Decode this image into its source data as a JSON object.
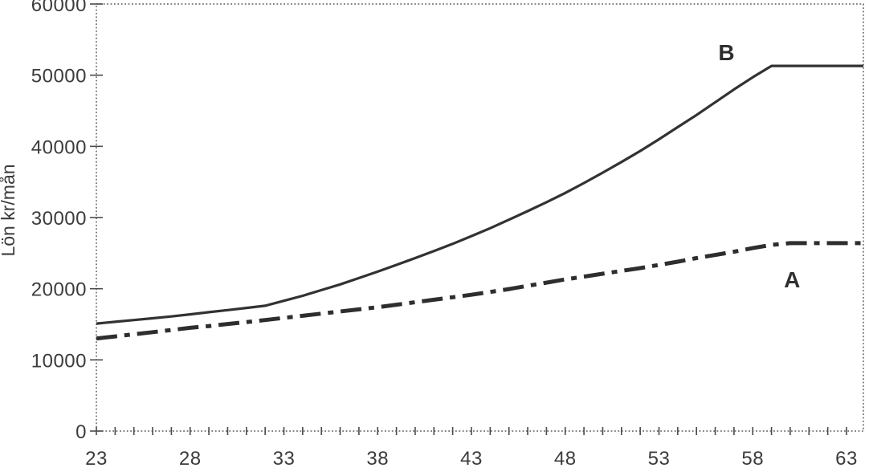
{
  "chart_data": {
    "type": "line",
    "title": "",
    "xlabel": "",
    "ylabel": "Lön kr/mån",
    "xlim": [
      23,
      63.9
    ],
    "ylim": [
      0,
      60000
    ],
    "grid": false,
    "legend_position": "inline-labels-on-plot",
    "axis_color": "#5a5a5a",
    "tick_color": "#4a4a4a",
    "text_color": "#3c3c3c",
    "x_tick_step": 1,
    "x_tick_labels": [
      23,
      28,
      33,
      38,
      43,
      48,
      53,
      58,
      63
    ],
    "y_tick_labels": [
      0,
      10000,
      20000,
      30000,
      40000,
      50000,
      60000
    ],
    "series": [
      {
        "name": "B",
        "style": "solid",
        "color": "#323232",
        "width": 3.2,
        "label_pos": [
          56.6,
          52100
        ],
        "points": [
          [
            23,
            15100
          ],
          [
            24,
            15350
          ],
          [
            25,
            15600
          ],
          [
            26,
            15850
          ],
          [
            27,
            16100
          ],
          [
            28,
            16400
          ],
          [
            29,
            16700
          ],
          [
            30,
            17000
          ],
          [
            31,
            17300
          ],
          [
            32,
            17600
          ],
          [
            33,
            18300
          ],
          [
            34,
            19000
          ],
          [
            35,
            19800
          ],
          [
            36,
            20600
          ],
          [
            37,
            21500
          ],
          [
            38,
            22400
          ],
          [
            39,
            23350
          ],
          [
            40,
            24300
          ],
          [
            41,
            25300
          ],
          [
            42,
            26300
          ],
          [
            43,
            27400
          ],
          [
            44,
            28500
          ],
          [
            45,
            29700
          ],
          [
            46,
            30900
          ],
          [
            47,
            32150
          ],
          [
            48,
            33450
          ],
          [
            49,
            34850
          ],
          [
            50,
            36300
          ],
          [
            51,
            37800
          ],
          [
            52,
            39350
          ],
          [
            53,
            41000
          ],
          [
            54,
            42700
          ],
          [
            55,
            44400
          ],
          [
            56,
            46200
          ],
          [
            57,
            48000
          ],
          [
            58,
            49700
          ],
          [
            59,
            51300
          ],
          [
            60,
            51300
          ],
          [
            61,
            51300
          ],
          [
            62,
            51300
          ],
          [
            63,
            51300
          ],
          [
            63.9,
            51300
          ]
        ]
      },
      {
        "name": "A",
        "style": "dash-dot",
        "color": "#2e2e2e",
        "width": 5,
        "label_pos": [
          60.1,
          20200
        ],
        "points": [
          [
            23,
            13000
          ],
          [
            24,
            13300
          ],
          [
            25,
            13600
          ],
          [
            26,
            13900
          ],
          [
            27,
            14200
          ],
          [
            28,
            14500
          ],
          [
            29,
            14750
          ],
          [
            30,
            15050
          ],
          [
            31,
            15300
          ],
          [
            32,
            15600
          ],
          [
            33,
            15900
          ],
          [
            34,
            16200
          ],
          [
            35,
            16500
          ],
          [
            36,
            16800
          ],
          [
            37,
            17100
          ],
          [
            38,
            17400
          ],
          [
            39,
            17750
          ],
          [
            40,
            18100
          ],
          [
            41,
            18450
          ],
          [
            42,
            18800
          ],
          [
            43,
            19150
          ],
          [
            44,
            19550
          ],
          [
            45,
            19950
          ],
          [
            46,
            20400
          ],
          [
            47,
            20850
          ],
          [
            48,
            21300
          ],
          [
            49,
            21700
          ],
          [
            50,
            22100
          ],
          [
            51,
            22500
          ],
          [
            52,
            22900
          ],
          [
            53,
            23350
          ],
          [
            54,
            23800
          ],
          [
            55,
            24300
          ],
          [
            56,
            24750
          ],
          [
            57,
            25200
          ],
          [
            58,
            25700
          ],
          [
            59,
            26150
          ],
          [
            60,
            26400
          ],
          [
            61,
            26400
          ],
          [
            62,
            26400
          ],
          [
            63,
            26400
          ],
          [
            63.9,
            26400
          ]
        ]
      }
    ]
  }
}
